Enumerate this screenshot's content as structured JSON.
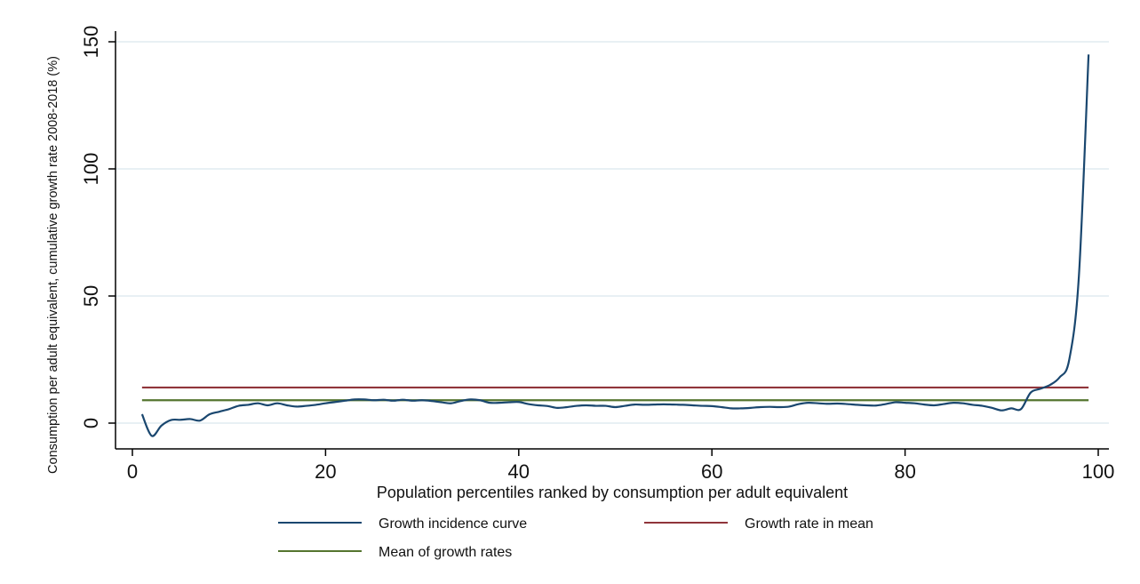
{
  "chart_data": {
    "type": "line",
    "title": "",
    "xlabel": "Population percentiles ranked by consumption per adult equivalent",
    "ylabel": "Consumption per adult equivalent, cumulative growth rate 2008-2018 (%)",
    "xlim": [
      0,
      101
    ],
    "ylim": [
      -10,
      152
    ],
    "xticks": [
      0,
      20,
      40,
      60,
      80,
      100
    ],
    "yticks": [
      0,
      50,
      100,
      150
    ],
    "grid": "horizontal",
    "legend_position": "bottom",
    "series": [
      {
        "name": "Growth incidence curve",
        "color": "#1a476f",
        "x": [
          1,
          2,
          3,
          4,
          5,
          6,
          7,
          8,
          9,
          10,
          11,
          12,
          13,
          14,
          15,
          16,
          17,
          18,
          19,
          20,
          21,
          22,
          23,
          24,
          25,
          26,
          27,
          28,
          29,
          30,
          31,
          32,
          33,
          34,
          35,
          36,
          37,
          38,
          39,
          40,
          41,
          42,
          43,
          44,
          45,
          46,
          47,
          48,
          49,
          50,
          51,
          52,
          53,
          54,
          55,
          56,
          57,
          58,
          59,
          60,
          61,
          62,
          63,
          64,
          65,
          66,
          67,
          68,
          69,
          70,
          71,
          72,
          73,
          74,
          75,
          76,
          77,
          78,
          79,
          80,
          81,
          82,
          83,
          84,
          85,
          86,
          87,
          88,
          89,
          90,
          91,
          92,
          93,
          94,
          95,
          96,
          97,
          98,
          99
        ],
        "y": [
          3.5,
          -5,
          -1,
          1.2,
          1.3,
          1.6,
          1.0,
          3.5,
          4.5,
          5.5,
          6.8,
          7.2,
          7.8,
          7.0,
          7.8,
          7.0,
          6.5,
          6.8,
          7.2,
          7.8,
          8.3,
          8.8,
          9.3,
          9.3,
          9.0,
          9.2,
          8.8,
          9.2,
          8.8,
          9.0,
          8.7,
          8.2,
          7.8,
          8.7,
          9.3,
          9.0,
          8.0,
          8.0,
          8.2,
          8.3,
          7.5,
          7.0,
          6.7,
          6.0,
          6.3,
          6.8,
          7.0,
          6.8,
          6.8,
          6.3,
          6.8,
          7.3,
          7.2,
          7.3,
          7.4,
          7.3,
          7.2,
          7.0,
          6.8,
          6.7,
          6.3,
          5.8,
          5.8,
          6.0,
          6.3,
          6.4,
          6.3,
          6.5,
          7.5,
          8.0,
          7.8,
          7.6,
          7.7,
          7.5,
          7.2,
          7.0,
          6.9,
          7.5,
          8.2,
          8.0,
          7.8,
          7.3,
          7.0,
          7.5,
          8.0,
          7.8,
          7.2,
          6.8,
          6.0,
          5.0,
          5.8,
          5.5,
          12.0,
          13.5,
          15.0,
          18.0,
          25.0,
          58.0,
          145.0
        ]
      },
      {
        "name": "Growth rate in mean",
        "color": "#90353b",
        "x": [
          1,
          99
        ],
        "y": [
          14,
          14
        ]
      },
      {
        "name": "Mean of growth rates",
        "color": "#55752f",
        "x": [
          1,
          99
        ],
        "y": [
          9,
          9
        ]
      }
    ]
  }
}
